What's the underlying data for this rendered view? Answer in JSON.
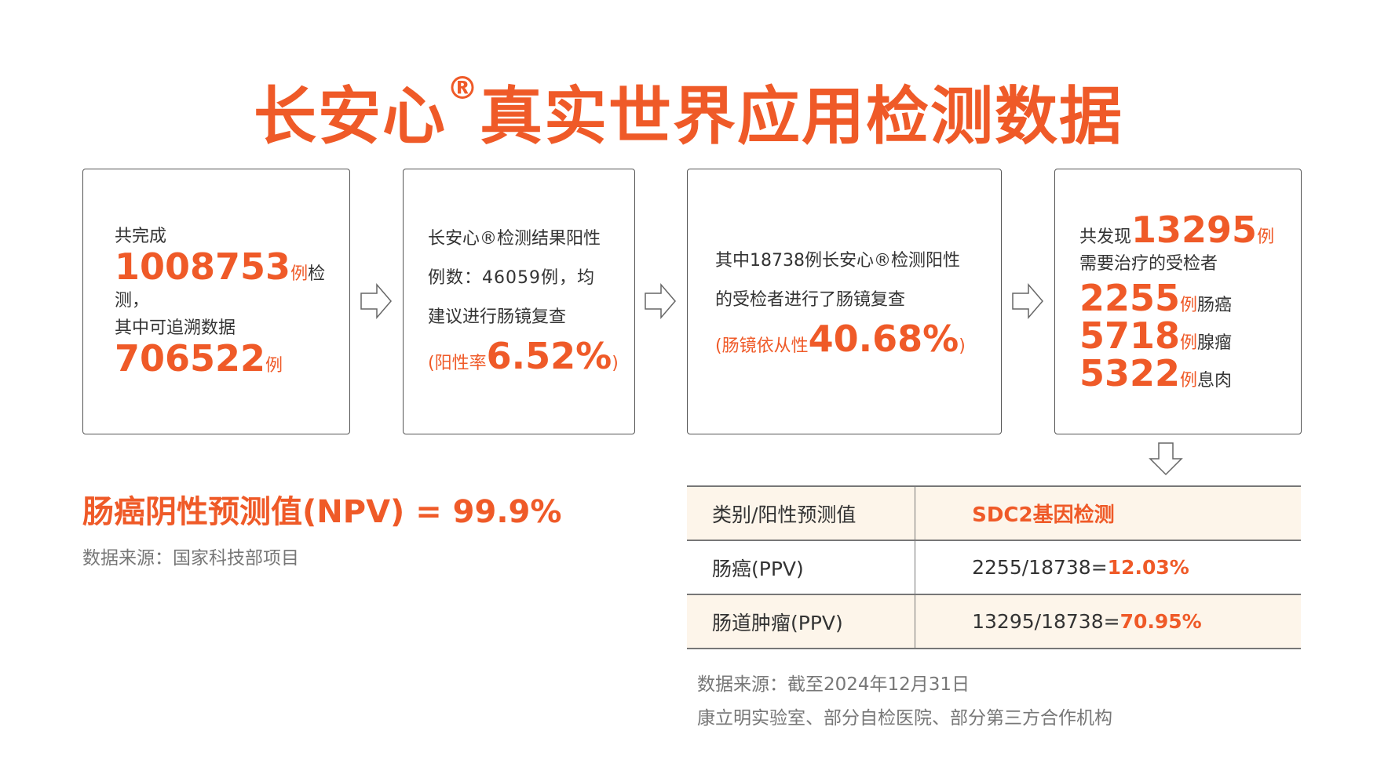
{
  "title": {
    "main": "长安心",
    "reg": "®",
    "rest": "真实世界应用检测数据"
  },
  "box1": {
    "l1": "共完成",
    "n1": "1008753",
    "u1": "例",
    "t1": "检测，",
    "l2": "其中可追溯数据",
    "n2": "706522",
    "u2": "例"
  },
  "box2": {
    "l1": "长安心®检测结果阳性",
    "l2": "例数：46059例，均",
    "l3": "建议进行肠镜复查",
    "p1": "(阳性率",
    "n": "6.52%",
    "p2": ")"
  },
  "box3": {
    "l1": "其中18738例长安心®检测阳性",
    "l2": "的受检者进行了肠镜复查",
    "p1": "(肠镜依从性",
    "n": "40.68%",
    "p2": ")"
  },
  "box4": {
    "pre": "共发现",
    "n0": "13295",
    "u0": "例",
    "l1": "需要治疗的受检者",
    "items": [
      {
        "n": "2255",
        "u": "例",
        "t": "肠癌"
      },
      {
        "n": "5718",
        "u": "例",
        "t": "腺瘤"
      },
      {
        "n": "5322",
        "u": "例",
        "t": "息肉"
      }
    ]
  },
  "npv": "肠癌阴性预测值(NPV) = 99.9%",
  "source1": "数据来源：国家科技部项目",
  "table": {
    "header": [
      "类别/阳性预测值",
      "SDC2基因检测"
    ],
    "rows": [
      {
        "label": "肠癌(PPV)",
        "calc": "2255/18738=",
        "val": "12.03%"
      },
      {
        "label": "肠道肿瘤(PPV)",
        "calc": "13295/18738=",
        "val": "70.95%"
      }
    ]
  },
  "source2": {
    "l1": "数据来源：截至2024年12月31日",
    "l2": "康立明实验室、部分自检医院、部分第三方合作机构"
  },
  "colors": {
    "accent": "#ef5a28",
    "header_bg": "#fdf5ea"
  }
}
